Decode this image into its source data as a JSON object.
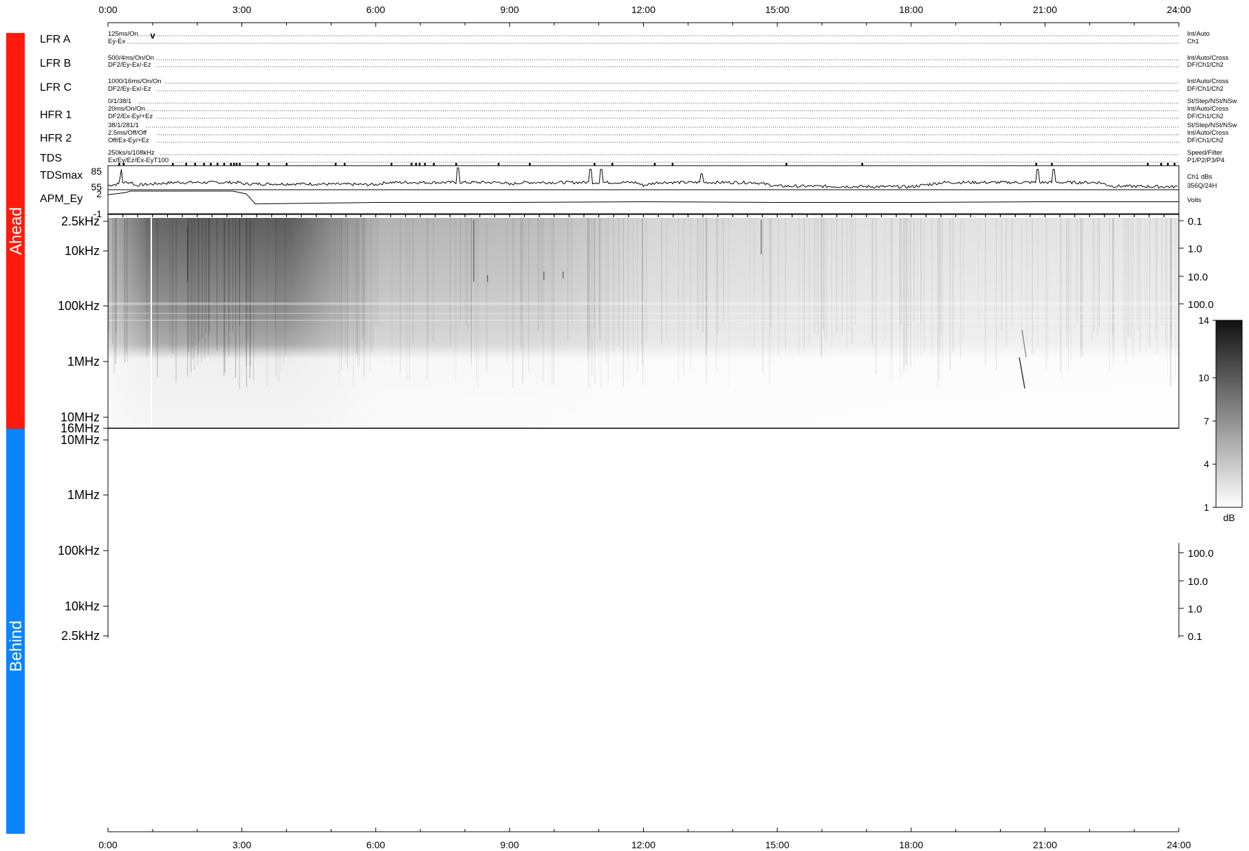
{
  "colors": {
    "ahead_bar": "#ff1a0d",
    "behind_bar": "#0a84ff"
  },
  "side_labels": {
    "ahead": "Ahead",
    "behind": "Behind"
  },
  "time_axis": {
    "ticks": [
      "0:00",
      "3:00",
      "6:00",
      "9:00",
      "12:00",
      "15:00",
      "18:00",
      "21:00",
      "24:00"
    ],
    "range_hours": [
      0,
      24
    ]
  },
  "rows": [
    {
      "name": "LFR A",
      "left": [
        "125ms/On",
        "Ey-Ex"
      ],
      "right": [
        "Int/Auto",
        "Ch1"
      ]
    },
    {
      "name": "LFR B",
      "left": [
        "500/4ms/On/On",
        "DF2/Ey-Ex/-Ez"
      ],
      "right": [
        "Int/Auto/Cross",
        "DF/Ch1/Ch2"
      ]
    },
    {
      "name": "LFR C",
      "left": [
        "1000/16ms/On/On",
        "DF2/Ey-Ex/-Ez"
      ],
      "right": [
        "Int/Auto/Cross",
        "DF/Ch1/Ch2"
      ]
    },
    {
      "name": "HFR 1",
      "left": [
        "0/1/38/1",
        "20ms/On/On",
        "DF2/Ex-Ey/+Ez"
      ],
      "right": [
        "St/Step/NSt/NSw",
        "Int/Auto/Cross",
        "DF/Ch1/Ch2"
      ]
    },
    {
      "name": "HFR 2",
      "left": [
        "38/1/281/1",
        "2.5ms/Off/Off",
        "Off/Ex-Ey/+Ez"
      ],
      "right": [
        "St/Step/NSt/NSw",
        "Int/Auto/Cross",
        "DF/Ch1/Ch2"
      ]
    },
    {
      "name": "TDS",
      "left": [
        "250ks/s/108kHz",
        "Ex/Ey/Ez/Ex-EyT100"
      ],
      "right": [
        "Speed/Filter",
        "P1/P2/P3/P4"
      ]
    }
  ],
  "lfr_marker": "v",
  "tdsmax": {
    "label": "TDSmax",
    "y_ticks": [
      "85",
      "55"
    ],
    "right": [
      "Ch1 dBs",
      "356Q/24H"
    ]
  },
  "apm": {
    "label": "APM_Ey",
    "y_ticks": [
      "2",
      "-1"
    ],
    "right": [
      "Volts"
    ]
  },
  "ahead_freq_ticks": [
    "2.5kHz",
    "10kHz",
    "100kHz",
    "1MHz",
    "10MHz",
    "16MHz"
  ],
  "ahead_right_ticks": [
    "0.1",
    "1.0",
    "10.0",
    "100.0"
  ],
  "behind_freq_ticks": [
    "10MHz",
    "1MHz",
    "100kHz",
    "10kHz",
    "2.5kHz"
  ],
  "behind_right_ticks": [
    "100.0",
    "10.0",
    "1.0",
    "0.1"
  ],
  "colorbar": {
    "ticks": [
      "14",
      "10",
      "7",
      "4",
      "1"
    ],
    "unit": "dB",
    "range": [
      1,
      14
    ]
  },
  "chart_data": [
    {
      "type": "line",
      "series": [
        {
          "name": "TDSmax",
          "x_hours": [
            0,
            0.25,
            0.3,
            0.6,
            1.0,
            1.5,
            2.2,
            2.8,
            3.0,
            4.5,
            6.0,
            7.85,
            9.0,
            10.8,
            11.05,
            12.0,
            13.3,
            15.0,
            18.0,
            20.85,
            21.2,
            22.5,
            24.0
          ],
          "values": [
            60,
            62,
            82,
            60,
            62,
            64,
            72,
            70,
            62,
            62,
            61,
            84,
            61,
            82,
            82,
            60,
            76,
            59,
            58,
            82,
            82,
            59,
            58
          ]
        },
        {
          "name": "APM_Ey",
          "x_hours": [
            0,
            0.4,
            0.5,
            2.8,
            3.1,
            3.3,
            6,
            9,
            12,
            15,
            18,
            21,
            24
          ],
          "values": [
            1.5,
            1.8,
            2.0,
            2.0,
            1.6,
            0.2,
            0.4,
            0.4,
            0.5,
            0.4,
            0.4,
            0.5,
            0.5
          ]
        }
      ],
      "ylim_tdsmax": [
        55,
        85
      ],
      "ylim_apm": [
        -1,
        2
      ],
      "xlim": [
        0,
        24
      ]
    },
    {
      "type": "heatmap",
      "panel": "Ahead",
      "x_range_hours": [
        0,
        24
      ],
      "y_range": [
        "2.5kHz",
        "16MHz"
      ],
      "z_range_dB": [
        1,
        14
      ]
    },
    {
      "type": "heatmap",
      "panel": "Behind",
      "x_range_hours": [
        0,
        24
      ],
      "y_range": [
        "2.5kHz",
        "10MHz"
      ],
      "z_range_dB": [
        1,
        14
      ]
    }
  ]
}
